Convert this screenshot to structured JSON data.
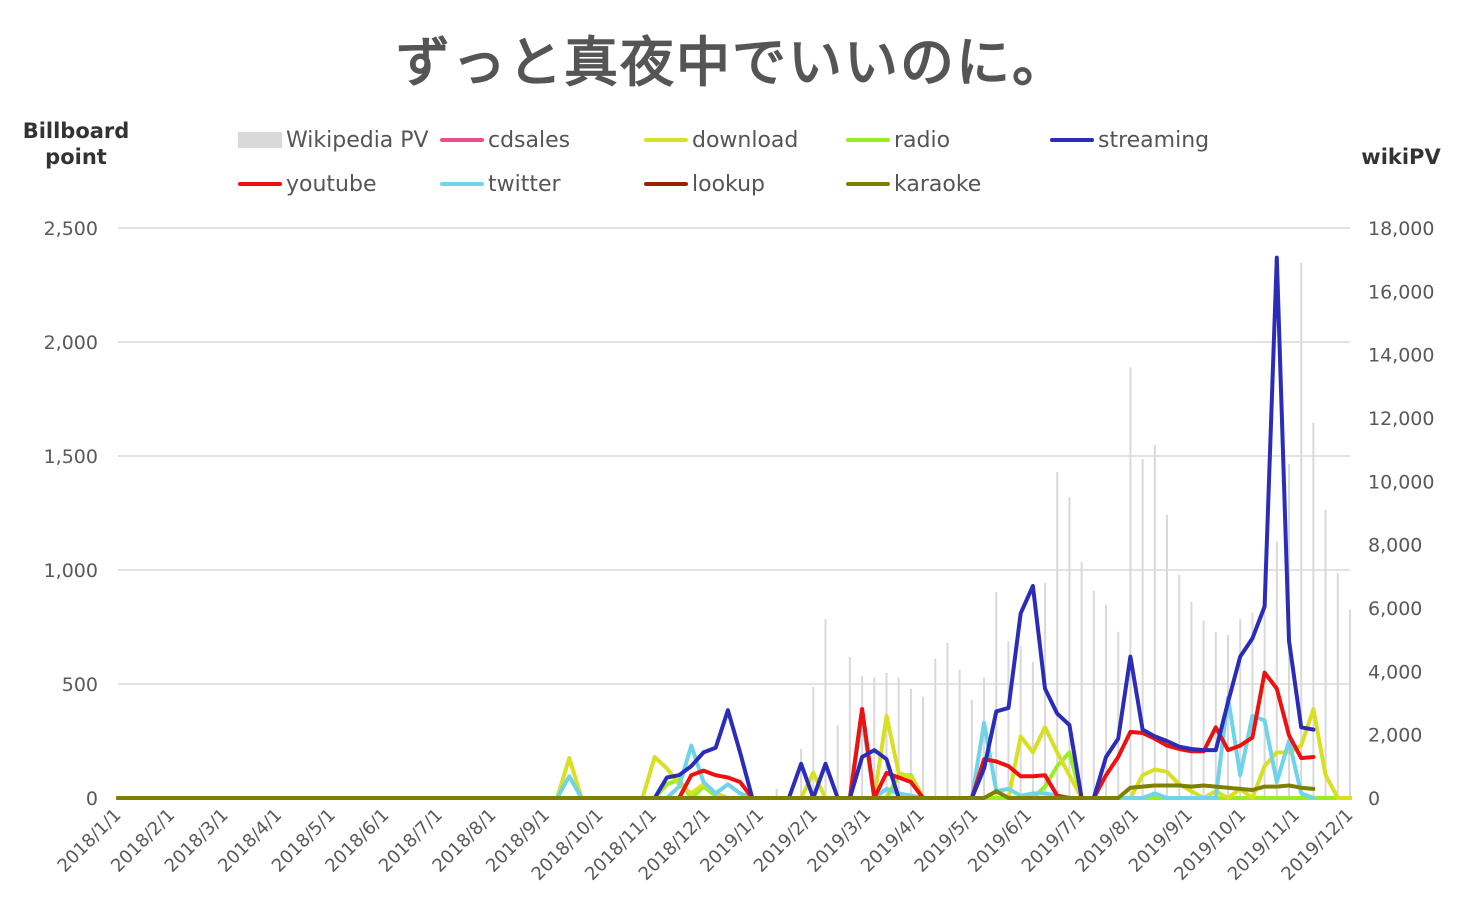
{
  "chart_data": {
    "type": "line",
    "title": "ずっと真夜中でいいのに。",
    "ylabel": "Billboard point",
    "y2label": "wikiPV",
    "ylim": [
      0,
      2500
    ],
    "y2lim": [
      0,
      18000
    ],
    "y_ticks": [
      "0",
      "500",
      "1,000",
      "1,500",
      "2,000",
      "2,500"
    ],
    "y2_ticks": [
      "0",
      "2,000",
      "4,000",
      "6,000",
      "8,000",
      "10,000",
      "12,000",
      "14,000",
      "16,000",
      "18,000"
    ],
    "x_ticks": [
      "2018/1/1",
      "2018/2/1",
      "2018/3/1",
      "2018/4/1",
      "2018/5/1",
      "2018/6/1",
      "2018/7/1",
      "2018/8/1",
      "2018/9/1",
      "2018/10/1",
      "2018/11/1",
      "2018/12/1",
      "2019/1/1",
      "2019/2/1",
      "2019/3/1",
      "2019/4/1",
      "2019/5/1",
      "2019/6/1",
      "2019/7/1",
      "2019/8/1",
      "2019/9/1",
      "2019/10/1",
      "2019/11/1",
      "2019/12/1"
    ],
    "grid": true,
    "legend_position": "top",
    "colors": {
      "wikipedia_pv": "#d9d9d9",
      "cdsales": "#ee4d8c",
      "download": "#d9e021",
      "radio": "#99ee22",
      "streaming": "#2b2db8",
      "youtube": "#ee1111",
      "twitter": "#6fd3ea",
      "lookup": "#992200",
      "karaoke": "#808000"
    },
    "wikipedia_pv": {
      "name": "Wikipedia PV",
      "points": [
        [
          54,
          300
        ],
        [
          56,
          1550
        ],
        [
          57,
          3500
        ],
        [
          58,
          5650
        ],
        [
          59,
          2300
        ],
        [
          60,
          4450
        ],
        [
          61,
          3850
        ],
        [
          62,
          3800
        ],
        [
          63,
          3950
        ],
        [
          64,
          3800
        ],
        [
          65,
          3450
        ],
        [
          66,
          3200
        ],
        [
          67,
          4400
        ],
        [
          68,
          4900
        ],
        [
          69,
          4050
        ],
        [
          70,
          3100
        ],
        [
          71,
          3800
        ],
        [
          72,
          6500
        ],
        [
          73,
          4950
        ],
        [
          74,
          4800
        ],
        [
          75,
          4300
        ],
        [
          76,
          6800
        ],
        [
          77,
          10300
        ],
        [
          78,
          9500
        ],
        [
          79,
          7450
        ],
        [
          80,
          6550
        ],
        [
          81,
          6100
        ],
        [
          82,
          5250
        ],
        [
          83,
          13600
        ],
        [
          84,
          10700
        ],
        [
          85,
          11150
        ],
        [
          86,
          8950
        ],
        [
          87,
          7050
        ],
        [
          88,
          6200
        ],
        [
          89,
          5600
        ],
        [
          90,
          5250
        ],
        [
          91,
          5150
        ],
        [
          92,
          5650
        ],
        [
          93,
          5850
        ],
        [
          94,
          7300
        ],
        [
          95,
          8100
        ],
        [
          96,
          10550
        ],
        [
          97,
          16900
        ],
        [
          98,
          11850
        ],
        [
          99,
          9100
        ],
        [
          100,
          7100
        ],
        [
          101,
          5950
        ]
      ]
    },
    "series": [
      {
        "name": "cdsales",
        "points": [
          [
            0,
            0
          ],
          [
            60,
            0
          ],
          [
            61,
            390
          ],
          [
            62,
            0
          ],
          [
            101,
            0
          ]
        ]
      },
      {
        "name": "download",
        "points": [
          [
            0,
            0
          ],
          [
            36,
            0
          ],
          [
            37,
            175
          ],
          [
            38,
            0
          ],
          [
            43,
            0
          ],
          [
            44,
            180
          ],
          [
            45,
            130
          ],
          [
            46,
            60
          ],
          [
            47,
            20
          ],
          [
            48,
            60
          ],
          [
            49,
            20
          ],
          [
            50,
            0
          ],
          [
            56,
            0
          ],
          [
            57,
            110
          ],
          [
            58,
            0
          ],
          [
            61,
            0
          ],
          [
            62,
            0
          ],
          [
            63,
            360
          ],
          [
            64,
            110
          ],
          [
            65,
            90
          ],
          [
            66,
            0
          ],
          [
            71,
            0
          ],
          [
            72,
            30
          ],
          [
            73,
            0
          ],
          [
            74,
            270
          ],
          [
            75,
            200
          ],
          [
            76,
            310
          ],
          [
            77,
            200
          ],
          [
            78,
            100
          ],
          [
            79,
            0
          ],
          [
            83,
            0
          ],
          [
            84,
            100
          ],
          [
            85,
            125
          ],
          [
            86,
            115
          ],
          [
            87,
            60
          ],
          [
            88,
            30
          ],
          [
            89,
            0
          ],
          [
            90,
            30
          ],
          [
            91,
            0
          ],
          [
            92,
            40
          ],
          [
            93,
            0
          ],
          [
            94,
            140
          ],
          [
            95,
            200
          ],
          [
            96,
            200
          ],
          [
            97,
            230
          ],
          [
            98,
            390
          ],
          [
            99,
            100
          ],
          [
            100,
            0
          ],
          [
            101,
            0
          ]
        ]
      },
      {
        "name": "radio",
        "points": [
          [
            0,
            0
          ],
          [
            44,
            0
          ],
          [
            45,
            60
          ],
          [
            46,
            80
          ],
          [
            47,
            0
          ],
          [
            48,
            50
          ],
          [
            49,
            10
          ],
          [
            50,
            0
          ],
          [
            63,
            0
          ],
          [
            64,
            100
          ],
          [
            65,
            100
          ],
          [
            66,
            0
          ],
          [
            75,
            0
          ],
          [
            76,
            50
          ],
          [
            77,
            140
          ],
          [
            78,
            200
          ],
          [
            79,
            0
          ],
          [
            101,
            0
          ]
        ]
      },
      {
        "name": "streaming",
        "points": [
          [
            0,
            0
          ],
          [
            44,
            0
          ],
          [
            45,
            90
          ],
          [
            46,
            100
          ],
          [
            47,
            140
          ],
          [
            48,
            200
          ],
          [
            49,
            220
          ],
          [
            50,
            385
          ],
          [
            51,
            200
          ],
          [
            52,
            0
          ],
          [
            55,
            0
          ],
          [
            56,
            150
          ],
          [
            57,
            0
          ],
          [
            58,
            150
          ],
          [
            59,
            0
          ],
          [
            60,
            0
          ],
          [
            61,
            180
          ],
          [
            62,
            210
          ],
          [
            63,
            170
          ],
          [
            64,
            0
          ],
          [
            70,
            0
          ],
          [
            71,
            130
          ],
          [
            72,
            380
          ],
          [
            73,
            395
          ],
          [
            74,
            810
          ],
          [
            75,
            930
          ],
          [
            76,
            480
          ],
          [
            77,
            370
          ],
          [
            78,
            320
          ],
          [
            79,
            0
          ],
          [
            80,
            0
          ],
          [
            81,
            180
          ],
          [
            82,
            260
          ],
          [
            83,
            620
          ],
          [
            84,
            300
          ],
          [
            85,
            270
          ],
          [
            86,
            250
          ],
          [
            87,
            225
          ],
          [
            88,
            215
          ],
          [
            89,
            210
          ],
          [
            90,
            210
          ],
          [
            91,
            420
          ],
          [
            92,
            620
          ],
          [
            93,
            700
          ],
          [
            94,
            840
          ],
          [
            95,
            2370
          ],
          [
            96,
            690
          ],
          [
            97,
            310
          ],
          [
            98,
            300
          ]
        ]
      },
      {
        "name": "youtube",
        "points": [
          [
            0,
            0
          ],
          [
            46,
            0
          ],
          [
            47,
            100
          ],
          [
            48,
            120
          ],
          [
            49,
            100
          ],
          [
            50,
            90
          ],
          [
            51,
            70
          ],
          [
            52,
            0
          ],
          [
            60,
            0
          ],
          [
            61,
            390
          ],
          [
            62,
            0
          ],
          [
            63,
            110
          ],
          [
            64,
            90
          ],
          [
            65,
            70
          ],
          [
            66,
            0
          ],
          [
            70,
            0
          ],
          [
            71,
            170
          ],
          [
            72,
            160
          ],
          [
            73,
            140
          ],
          [
            74,
            95
          ],
          [
            75,
            95
          ],
          [
            76,
            100
          ],
          [
            77,
            10
          ],
          [
            78,
            0
          ],
          [
            80,
            0
          ],
          [
            81,
            100
          ],
          [
            82,
            180
          ],
          [
            83,
            290
          ],
          [
            84,
            285
          ],
          [
            85,
            260
          ],
          [
            86,
            230
          ],
          [
            87,
            215
          ],
          [
            88,
            205
          ],
          [
            89,
            205
          ],
          [
            90,
            310
          ],
          [
            91,
            210
          ],
          [
            92,
            230
          ],
          [
            93,
            265
          ],
          [
            94,
            550
          ],
          [
            95,
            480
          ],
          [
            96,
            275
          ],
          [
            97,
            175
          ],
          [
            98,
            180
          ]
        ]
      },
      {
        "name": "twitter",
        "points": [
          [
            0,
            0
          ],
          [
            36,
            0
          ],
          [
            37,
            95
          ],
          [
            38,
            0
          ],
          [
            45,
            0
          ],
          [
            46,
            50
          ],
          [
            47,
            230
          ],
          [
            48,
            70
          ],
          [
            49,
            20
          ],
          [
            50,
            60
          ],
          [
            51,
            20
          ],
          [
            52,
            0
          ],
          [
            60,
            0
          ],
          [
            61,
            360
          ],
          [
            62,
            0
          ],
          [
            63,
            40
          ],
          [
            64,
            20
          ],
          [
            65,
            10
          ],
          [
            66,
            0
          ],
          [
            70,
            0
          ],
          [
            71,
            330
          ],
          [
            72,
            30
          ],
          [
            73,
            40
          ],
          [
            74,
            10
          ],
          [
            75,
            20
          ],
          [
            76,
            20
          ],
          [
            77,
            10
          ],
          [
            78,
            0
          ],
          [
            84,
            0
          ],
          [
            85,
            20
          ],
          [
            86,
            0
          ],
          [
            90,
            0
          ],
          [
            91,
            440
          ],
          [
            92,
            100
          ],
          [
            93,
            360
          ],
          [
            94,
            340
          ],
          [
            95,
            70
          ],
          [
            96,
            250
          ],
          [
            97,
            20
          ],
          [
            98,
            0
          ]
        ]
      },
      {
        "name": "lookup",
        "points": [
          [
            0,
            0
          ],
          [
            101,
            0
          ]
        ]
      },
      {
        "name": "karaoke",
        "points": [
          [
            0,
            0
          ],
          [
            71,
            0
          ],
          [
            72,
            30
          ],
          [
            73,
            0
          ],
          [
            82,
            0
          ],
          [
            83,
            45
          ],
          [
            84,
            50
          ],
          [
            85,
            55
          ],
          [
            86,
            55
          ],
          [
            87,
            55
          ],
          [
            88,
            50
          ],
          [
            89,
            55
          ],
          [
            90,
            50
          ],
          [
            91,
            45
          ],
          [
            92,
            40
          ],
          [
            93,
            35
          ],
          [
            94,
            50
          ],
          [
            95,
            50
          ],
          [
            96,
            55
          ],
          [
            97,
            45
          ],
          [
            98,
            40
          ]
        ]
      }
    ]
  }
}
